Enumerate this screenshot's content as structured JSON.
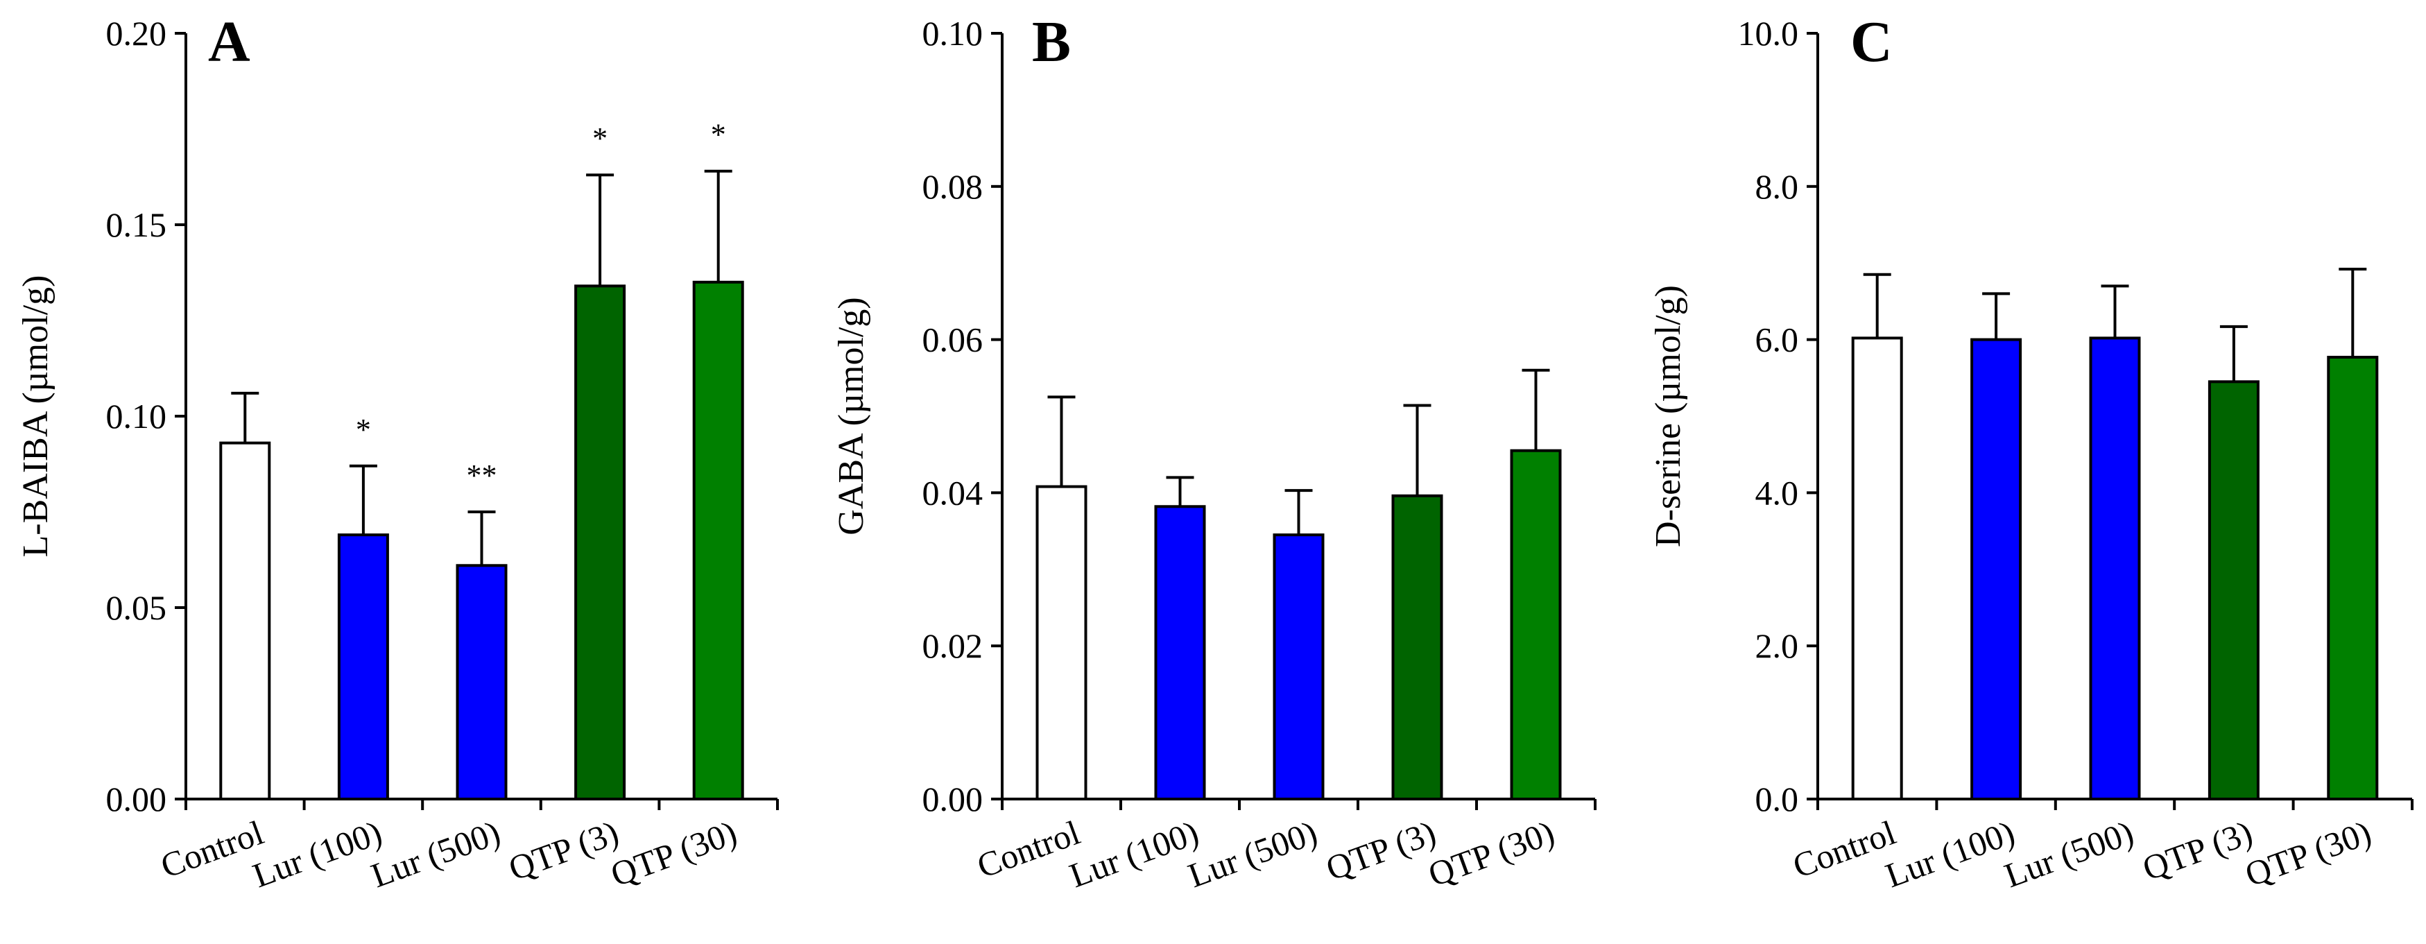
{
  "colors": {
    "control": "#ffffff",
    "lur": "#0000ff",
    "qtp3": "#006400",
    "qtp30": "#008000",
    "stroke": "#000000"
  },
  "chart_data": [
    {
      "type": "bar",
      "panel_label": "A",
      "ylabel": "L-BAIBA (µmol/g)",
      "categories": [
        "Control",
        "Lur (100)",
        "Lur (500)",
        "QTP (3)",
        "QTP (30)"
      ],
      "values": [
        0.093,
        0.069,
        0.061,
        0.134,
        0.135
      ],
      "errors": [
        0.013,
        0.018,
        0.014,
        0.029,
        0.029
      ],
      "significance": [
        "",
        "*",
        "**",
        "*",
        "*"
      ],
      "bar_colors": [
        "#ffffff",
        "#0000ff",
        "#0000ff",
        "#006400",
        "#008000"
      ],
      "ylim": [
        0,
        0.2
      ],
      "yticks": [
        "0.00",
        "0.05",
        "0.10",
        "0.15",
        "0.20"
      ]
    },
    {
      "type": "bar",
      "panel_label": "B",
      "ylabel": "GABA (µmol/g)",
      "categories": [
        "Control",
        "Lur (100)",
        "Lur (500)",
        "QTP (3)",
        "QTP (30)"
      ],
      "values": [
        0.0408,
        0.0382,
        0.0345,
        0.0396,
        0.0455
      ],
      "errors": [
        0.0117,
        0.0038,
        0.0058,
        0.0118,
        0.0105
      ],
      "significance": [
        "",
        "",
        "",
        "",
        ""
      ],
      "bar_colors": [
        "#ffffff",
        "#0000ff",
        "#0000ff",
        "#006400",
        "#008000"
      ],
      "ylim": [
        0,
        0.1
      ],
      "yticks": [
        "0.00",
        "0.02",
        "0.04",
        "0.06",
        "0.08",
        "0.10"
      ]
    },
    {
      "type": "bar",
      "panel_label": "C",
      "ylabel": "D-serine (µmol/g)",
      "categories": [
        "Control",
        "Lur (100)",
        "Lur (500)",
        "QTP (3)",
        "QTP (30)"
      ],
      "values": [
        6.02,
        6.0,
        6.02,
        5.45,
        5.77
      ],
      "errors": [
        0.83,
        0.6,
        0.68,
        0.72,
        1.15
      ],
      "significance": [
        "",
        "",
        "",
        "",
        ""
      ],
      "bar_colors": [
        "#ffffff",
        "#0000ff",
        "#0000ff",
        "#006400",
        "#008000"
      ],
      "ylim": [
        0,
        10
      ],
      "yticks": [
        "0.0",
        "2.0",
        "4.0",
        "6.0",
        "8.0",
        "10.0"
      ]
    }
  ]
}
